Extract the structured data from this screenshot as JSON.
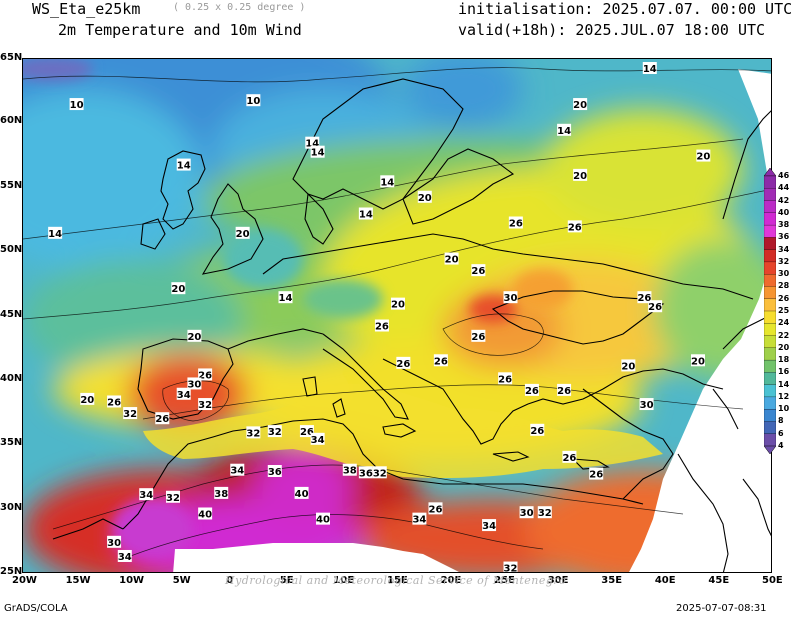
{
  "header": {
    "model": "WS_Eta_e25km",
    "resolution": "( 0.25 x 0.25 degree )",
    "field": "2m Temperature and 10m Wind",
    "init": "initialisation: 2025.07.07. 00:00 UTC",
    "valid": "valid(+18h): 2025.JUL.07 18:00 UTC"
  },
  "map": {
    "region": "Europe, North Africa, Mediterranean",
    "lon_labels": [
      "20W",
      "15W",
      "10W",
      "5W",
      "0",
      "5E",
      "10E",
      "15E",
      "20E",
      "25E",
      "30E",
      "35E",
      "40E",
      "45E",
      "50E"
    ],
    "lat_labels": [
      "65N",
      "60N",
      "55N",
      "50N",
      "45N",
      "40N",
      "35N",
      "30N",
      "25N"
    ],
    "contour_labels": [
      {
        "value": "10",
        "lon": -15,
        "lat": 61.5
      },
      {
        "value": "10",
        "lon": 1.5,
        "lat": 61.8
      },
      {
        "value": "14",
        "lon": -5,
        "lat": 56.8
      },
      {
        "value": "14",
        "lon": -17,
        "lat": 51.5
      },
      {
        "value": "14",
        "lon": 7,
        "lat": 58.5
      },
      {
        "value": "14",
        "lon": 7.5,
        "lat": 57.8
      },
      {
        "value": "14",
        "lon": 14,
        "lat": 55.5
      },
      {
        "value": "14",
        "lon": 12,
        "lat": 53
      },
      {
        "value": "14",
        "lon": 4.5,
        "lat": 46.5
      },
      {
        "value": "14",
        "lon": 38.5,
        "lat": 64.3
      },
      {
        "value": "14",
        "lon": 30.5,
        "lat": 59.5
      },
      {
        "value": "20",
        "lon": 32,
        "lat": 61.5
      },
      {
        "value": "20",
        "lon": 43.5,
        "lat": 57.5
      },
      {
        "value": "20",
        "lon": 32,
        "lat": 56
      },
      {
        "value": "20",
        "lon": 17.5,
        "lat": 54.3
      },
      {
        "value": "20",
        "lon": 0.5,
        "lat": 51.5
      },
      {
        "value": "20",
        "lon": -5.5,
        "lat": 47.2
      },
      {
        "value": "20",
        "lon": 20,
        "lat": 49.5
      },
      {
        "value": "20",
        "lon": 15,
        "lat": 46
      },
      {
        "value": "20",
        "lon": -4,
        "lat": 43.5
      },
      {
        "value": "20",
        "lon": -14,
        "lat": 38.6
      },
      {
        "value": "20",
        "lon": 36.5,
        "lat": 41.2
      },
      {
        "value": "20",
        "lon": 43,
        "lat": 41.6
      },
      {
        "value": "26",
        "lon": 26,
        "lat": 52.3
      },
      {
        "value": "26",
        "lon": 31.5,
        "lat": 52
      },
      {
        "value": "26",
        "lon": 22.5,
        "lat": 48.6
      },
      {
        "value": "26",
        "lon": 13.5,
        "lat": 44.3
      },
      {
        "value": "26",
        "lon": 15.5,
        "lat": 41.4
      },
      {
        "value": "26",
        "lon": 19,
        "lat": 41.6
      },
      {
        "value": "26",
        "lon": 39,
        "lat": 45.8
      },
      {
        "value": "26",
        "lon": 22.5,
        "lat": 43.5
      },
      {
        "value": "26",
        "lon": 38,
        "lat": 46.5
      },
      {
        "value": "26",
        "lon": 25,
        "lat": 40.2
      },
      {
        "value": "26",
        "lon": 27.5,
        "lat": 39.3
      },
      {
        "value": "26",
        "lon": 30.5,
        "lat": 39.3
      },
      {
        "value": "26",
        "lon": 28,
        "lat": 36.2
      },
      {
        "value": "26",
        "lon": 31,
        "lat": 34.1
      },
      {
        "value": "26",
        "lon": 33.5,
        "lat": 32.8
      },
      {
        "value": "26",
        "lon": -11.5,
        "lat": 38.4
      },
      {
        "value": "26",
        "lon": -7,
        "lat": 37.1
      },
      {
        "value": "26",
        "lon": -3,
        "lat": 40.5
      },
      {
        "value": "26",
        "lon": 6.5,
        "lat": 36.1
      },
      {
        "value": "26",
        "lon": 18.5,
        "lat": 30.1
      },
      {
        "value": "30",
        "lon": 25.5,
        "lat": 46.5
      },
      {
        "value": "30",
        "lon": -4,
        "lat": 39.8
      },
      {
        "value": "30",
        "lon": 38.2,
        "lat": 38.2
      },
      {
        "value": "30",
        "lon": 27,
        "lat": 29.8
      },
      {
        "value": "34",
        "lon": -5,
        "lat": 39
      },
      {
        "value": "32",
        "lon": -10,
        "lat": 37.5
      },
      {
        "value": "32",
        "lon": -3,
        "lat": 38.2
      },
      {
        "value": "32",
        "lon": 1.5,
        "lat": 36
      },
      {
        "value": "32",
        "lon": 3.5,
        "lat": 36.1
      },
      {
        "value": "34",
        "lon": 7.5,
        "lat": 35.5
      },
      {
        "value": "34",
        "lon": 0,
        "lat": 33.1
      },
      {
        "value": "36",
        "lon": 3.5,
        "lat": 33
      },
      {
        "value": "38",
        "lon": 10.5,
        "lat": 33.1
      },
      {
        "value": "36",
        "lon": 12,
        "lat": 32.9
      },
      {
        "value": "32",
        "lon": 13.3,
        "lat": 32.9
      },
      {
        "value": "38",
        "lon": -1.5,
        "lat": 31.3
      },
      {
        "value": "40",
        "lon": -3,
        "lat": 29.7
      },
      {
        "value": "40",
        "lon": 6,
        "lat": 31.3
      },
      {
        "value": "40",
        "lon": 8,
        "lat": 29.3
      },
      {
        "value": "34",
        "lon": -8.5,
        "lat": 31.2
      },
      {
        "value": "32",
        "lon": -6,
        "lat": 31
      },
      {
        "value": "30",
        "lon": -11.5,
        "lat": 27.5
      },
      {
        "value": "34",
        "lon": -10.5,
        "lat": 26.4
      },
      {
        "value": "34",
        "lon": 17,
        "lat": 29.3
      },
      {
        "value": "34",
        "lon": 23.5,
        "lat": 28.8
      },
      {
        "value": "32",
        "lon": 28.7,
        "lat": 29.8
      },
      {
        "value": "32",
        "lon": 25.5,
        "lat": 25.5
      }
    ]
  },
  "colorbar": {
    "labels": [
      "46",
      "44",
      "42",
      "40",
      "38",
      "36",
      "34",
      "32",
      "30",
      "28",
      "26",
      "25",
      "24",
      "22",
      "20",
      "18",
      "16",
      "14",
      "12",
      "10",
      "8",
      "6",
      "4"
    ],
    "colors": [
      "#8c2ba8",
      "#a12cb5",
      "#bb2cc6",
      "#d02bd2",
      "#e038d8",
      "#b0182a",
      "#d22c25",
      "#e6452b",
      "#ef6b2f",
      "#f69533",
      "#fbbf3d",
      "#f6dd2f",
      "#e6e62e",
      "#c7de38",
      "#9fd04a",
      "#72c36b",
      "#51b89a",
      "#4bc2d3",
      "#4aa9e0",
      "#3a86d0",
      "#4266b6",
      "#6b4ea8"
    ]
  },
  "footer": {
    "left": "GrADS/COLA",
    "right": "2025-07-07-08:31",
    "watermark": "Hydrological and Meteorological Service of Montenegro"
  }
}
